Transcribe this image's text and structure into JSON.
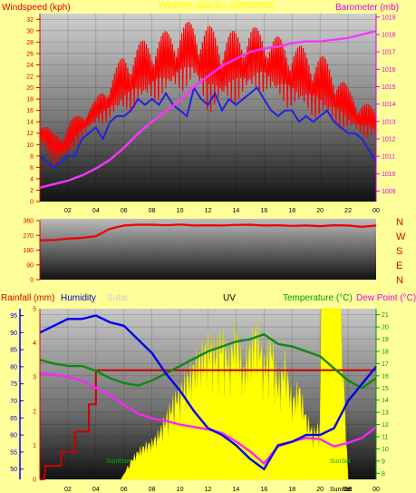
{
  "colors": {
    "background": "#ffff99",
    "wind_speed": "#ff0000",
    "wind_avg": "#2222dd",
    "barometer": "#ff33ff",
    "direction": "#ee0000",
    "humidity": "#0000ee",
    "temperature": "#118811",
    "dew_point": "#ff22ff",
    "rainfall": "#cc0000",
    "uv_solar": "#ffff00",
    "label_red": "#dd0000",
    "label_green": "#009900",
    "label_blue": "#0000bb",
    "label_yellow": "#ffff00",
    "label_pink": "#ee00ee",
    "label_gray": "#cccccc"
  },
  "chart_data": [
    {
      "type": "line",
      "panel": "wind-barometer",
      "header_left": "Windspeed (kph)",
      "header_center": "Weather data for 30/08/2009",
      "header_right": "Barometer (mb)",
      "x_ticks": [
        "02",
        "04",
        "06",
        "08",
        "10",
        "12",
        "14",
        "16",
        "18",
        "20",
        "22",
        "00"
      ],
      "x_range": [
        0,
        24
      ],
      "left_axis": {
        "ticks": [
          "0",
          "2",
          "4",
          "6",
          "8",
          "10",
          "12",
          "14",
          "16",
          "18",
          "20",
          "22",
          "24",
          "26",
          "28",
          "30",
          "32"
        ],
        "range": [
          0,
          33
        ]
      },
      "right_axis": {
        "ticks": [
          "1009",
          "1010",
          "1011",
          "1012",
          "1013",
          "1014",
          "1015",
          "1016",
          "1017",
          "1018",
          "1019"
        ],
        "range": [
          1008.4,
          1019.2
        ]
      },
      "gust_envelope": {
        "x": [
          0,
          1,
          2,
          3,
          4,
          5,
          6,
          7,
          8,
          9,
          10,
          11,
          12,
          13,
          14,
          15,
          16,
          17,
          18,
          19,
          20,
          21,
          22,
          23,
          24
        ],
        "low": [
          10,
          6,
          7,
          11,
          13,
          14,
          15,
          16,
          17,
          18,
          19,
          20,
          15,
          16,
          17,
          18,
          19,
          17,
          16,
          15,
          14,
          13,
          12,
          11,
          11
        ],
        "high": [
          15,
          12,
          14,
          16,
          18,
          22,
          26,
          28,
          29,
          30,
          31,
          32,
          31,
          30,
          30,
          31,
          30,
          29,
          28,
          27,
          26,
          24,
          20,
          18,
          16
        ]
      },
      "series": [
        {
          "role": "average-wind",
          "x": [
            0,
            0.5,
            1,
            1.5,
            2,
            2.5,
            3,
            3.5,
            4,
            4.5,
            5,
            5.5,
            6,
            6.5,
            7,
            7.5,
            8,
            8.5,
            9,
            9.5,
            10,
            10.5,
            11,
            11.5,
            12,
            12.5,
            13,
            13.5,
            14,
            14.5,
            15,
            15.5,
            16,
            16.5,
            17,
            17.5,
            18,
            18.5,
            19,
            19.5,
            20,
            20.5,
            21,
            21.5,
            22,
            22.5,
            23,
            23.5,
            24
          ],
          "values": [
            8,
            7,
            6,
            7,
            8,
            8,
            11,
            12,
            13,
            11,
            14,
            15,
            15,
            16,
            18,
            17,
            18,
            17,
            19,
            17,
            16,
            15,
            20,
            18,
            17,
            19,
            16,
            18,
            17,
            18,
            19,
            20,
            18,
            16,
            15,
            16,
            16,
            14,
            15,
            14,
            15,
            16,
            14,
            13,
            12,
            12,
            11,
            9,
            7
          ]
        },
        {
          "role": "barometer",
          "x": [
            0,
            1,
            2,
            3,
            4,
            5,
            6,
            7,
            8,
            9,
            10,
            11,
            12,
            13,
            14,
            15,
            16,
            17,
            18,
            19,
            20,
            21,
            22,
            23,
            24
          ],
          "values": [
            1009.2,
            1009.4,
            1009.6,
            1009.9,
            1010.3,
            1010.8,
            1011.5,
            1012.3,
            1013.0,
            1013.6,
            1014.2,
            1015.0,
            1015.6,
            1016.2,
            1016.6,
            1017.0,
            1017.2,
            1017.3,
            1017.5,
            1017.6,
            1017.6,
            1017.7,
            1017.8,
            1018.0,
            1018.2
          ]
        }
      ]
    },
    {
      "type": "line",
      "panel": "wind-direction",
      "left_axis": {
        "ticks": [
          "0",
          "90",
          "180",
          "270",
          "360"
        ],
        "range": [
          0,
          360
        ]
      },
      "right_labels": [
        "N",
        "W",
        "S",
        "E",
        "N"
      ],
      "series": [
        {
          "role": "direction",
          "x": [
            0,
            1,
            2,
            3,
            4,
            5,
            6,
            7,
            8,
            9,
            10,
            11,
            12,
            13,
            14,
            15,
            16,
            17,
            18,
            19,
            20,
            21,
            22,
            23,
            24
          ],
          "values": [
            240,
            242,
            250,
            255,
            265,
            310,
            330,
            335,
            335,
            332,
            336,
            330,
            332,
            330,
            334,
            335,
            330,
            332,
            328,
            330,
            326,
            332,
            330,
            322,
            330
          ]
        }
      ]
    },
    {
      "type": "line",
      "panel": "rain-humidity-temperature",
      "header_rainfall": "Rainfall (mm)",
      "header_humidity": "Humidity",
      "header_solar": "Solar",
      "header_uv": "UV",
      "header_temperature": "Temperature (°C)",
      "header_dewpoint": "Dew Point (°C)",
      "sunrise_label": "SunRise",
      "sunset_label": "SunSet",
      "sunrise_tick": "Sunrise",
      "sunset_tick": "Set",
      "x_ticks": [
        "02",
        "04",
        "06",
        "08",
        "10",
        "12",
        "14",
        "16",
        "18",
        "20",
        "22",
        "00"
      ],
      "x_range": [
        0,
        24
      ],
      "rain_axis": {
        "ticks": [
          "0",
          "1",
          "2",
          "3",
          "4",
          "5"
        ],
        "range": [
          0,
          5
        ]
      },
      "humidity_axis": {
        "ticks": [
          "50",
          "55",
          "60",
          "65",
          "70",
          "75",
          "80",
          "85",
          "90",
          "95"
        ],
        "range": [
          47,
          97
        ]
      },
      "temperature_axis": {
        "ticks": [
          "8",
          "9",
          "10",
          "11",
          "12",
          "13",
          "14",
          "15",
          "16",
          "17",
          "18",
          "19",
          "20",
          "21"
        ],
        "range": [
          7.5,
          21.5
        ]
      },
      "series": [
        {
          "role": "humidity",
          "x": [
            0,
            1,
            2,
            3,
            4,
            5,
            6,
            7,
            8,
            9,
            10,
            11,
            12,
            13,
            14,
            15,
            16,
            17,
            18,
            19,
            20,
            21,
            22,
            23,
            24
          ],
          "values": [
            90,
            92,
            94,
            94,
            95,
            93,
            92,
            88,
            84,
            78,
            73,
            67,
            62,
            60,
            57,
            53,
            50,
            57,
            58,
            60,
            60,
            62,
            70,
            75,
            80
          ]
        },
        {
          "role": "temperature",
          "x": [
            0,
            1,
            2,
            3,
            4,
            5,
            6,
            7,
            8,
            9,
            10,
            11,
            12,
            13,
            14,
            15,
            16,
            17,
            18,
            19,
            20,
            21,
            22,
            23,
            24
          ],
          "values": [
            17.3,
            17.0,
            16.8,
            16.8,
            16.4,
            15.8,
            15.4,
            15.2,
            15.6,
            16.2,
            16.8,
            17.4,
            18.0,
            18.4,
            18.8,
            19.0,
            19.4,
            18.6,
            18.4,
            18.0,
            17.6,
            16.6,
            15.6,
            15.0,
            15.8
          ]
        },
        {
          "role": "dew-point",
          "x": [
            0,
            1,
            2,
            3,
            4,
            5,
            6,
            7,
            8,
            9,
            10,
            11,
            12,
            13,
            14,
            15,
            16,
            17,
            18,
            19,
            20,
            21,
            22,
            23,
            24
          ],
          "values": [
            16.2,
            16.1,
            15.9,
            15.6,
            15.0,
            14.4,
            13.6,
            12.9,
            12.5,
            12.3,
            12.0,
            11.8,
            11.6,
            11.3,
            10.6,
            9.8,
            8.8,
            10.2,
            10.6,
            10.9,
            10.8,
            10.2,
            10.5,
            10.9,
            11.8
          ]
        },
        {
          "role": "rainfall",
          "x": [
            0,
            0.3,
            0.4,
            1.5,
            1.5,
            2.5,
            2.5,
            3.5,
            3.5,
            4.0,
            4.0,
            4.3,
            24
          ],
          "values": [
            0,
            0,
            0.4,
            0.4,
            0.8,
            0.8,
            1.4,
            1.4,
            2.2,
            2.2,
            3.2,
            3.2,
            3.2
          ]
        },
        {
          "role": "solar",
          "x": [
            5.8,
            6.5,
            7,
            7.5,
            8,
            8.5,
            9,
            9.5,
            10,
            10.5,
            11,
            11.5,
            12,
            12.5,
            13,
            13.5,
            14,
            14.5,
            15,
            15.5,
            16,
            16.5,
            17,
            17.5,
            18,
            18.5,
            19,
            19.5,
            20,
            20.5,
            21,
            21.5,
            22
          ],
          "values": [
            0,
            0.12,
            0.18,
            0.22,
            0.24,
            0.3,
            0.4,
            0.5,
            0.58,
            0.66,
            0.74,
            0.82,
            0.88,
            0.84,
            0.92,
            0.78,
            0.96,
            0.7,
            0.86,
            0.98,
            0.74,
            0.9,
            0.62,
            0.76,
            0.5,
            0.6,
            0.4,
            0.3,
            0.35,
            1.0,
            1.0,
            1.0,
            0
          ]
        }
      ]
    }
  ]
}
